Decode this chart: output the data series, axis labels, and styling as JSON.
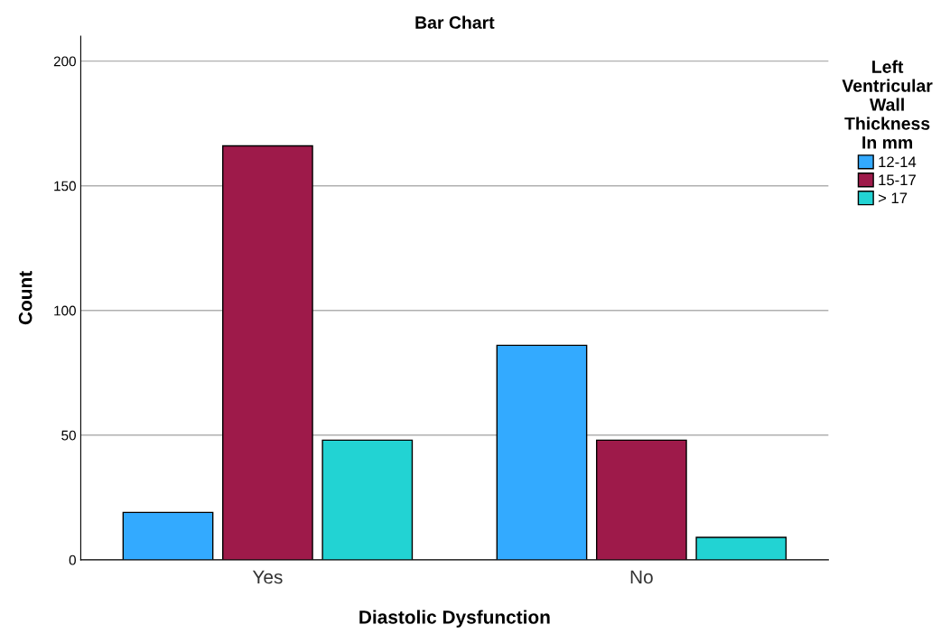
{
  "chart_data": {
    "type": "bar",
    "title": "Bar Chart",
    "xlabel": "Diastolic Dysfunction",
    "ylabel": "Count",
    "legend_title": "Left\nVentricular\nWall\nThickness\nIn mm",
    "categories": [
      "Yes",
      "No"
    ],
    "series": [
      {
        "name": "12-14",
        "color": "#33aaff",
        "values": [
          19,
          86
        ]
      },
      {
        "name": "15-17",
        "color": "#9e1a4a",
        "values": [
          166,
          48
        ]
      },
      {
        "name": "> 17",
        "color": "#22d3d3",
        "values": [
          48,
          9
        ]
      }
    ],
    "ylim": [
      0,
      210
    ],
    "yticks": [
      0,
      50,
      100,
      150,
      200
    ],
    "grid": "y",
    "legend": "right"
  }
}
